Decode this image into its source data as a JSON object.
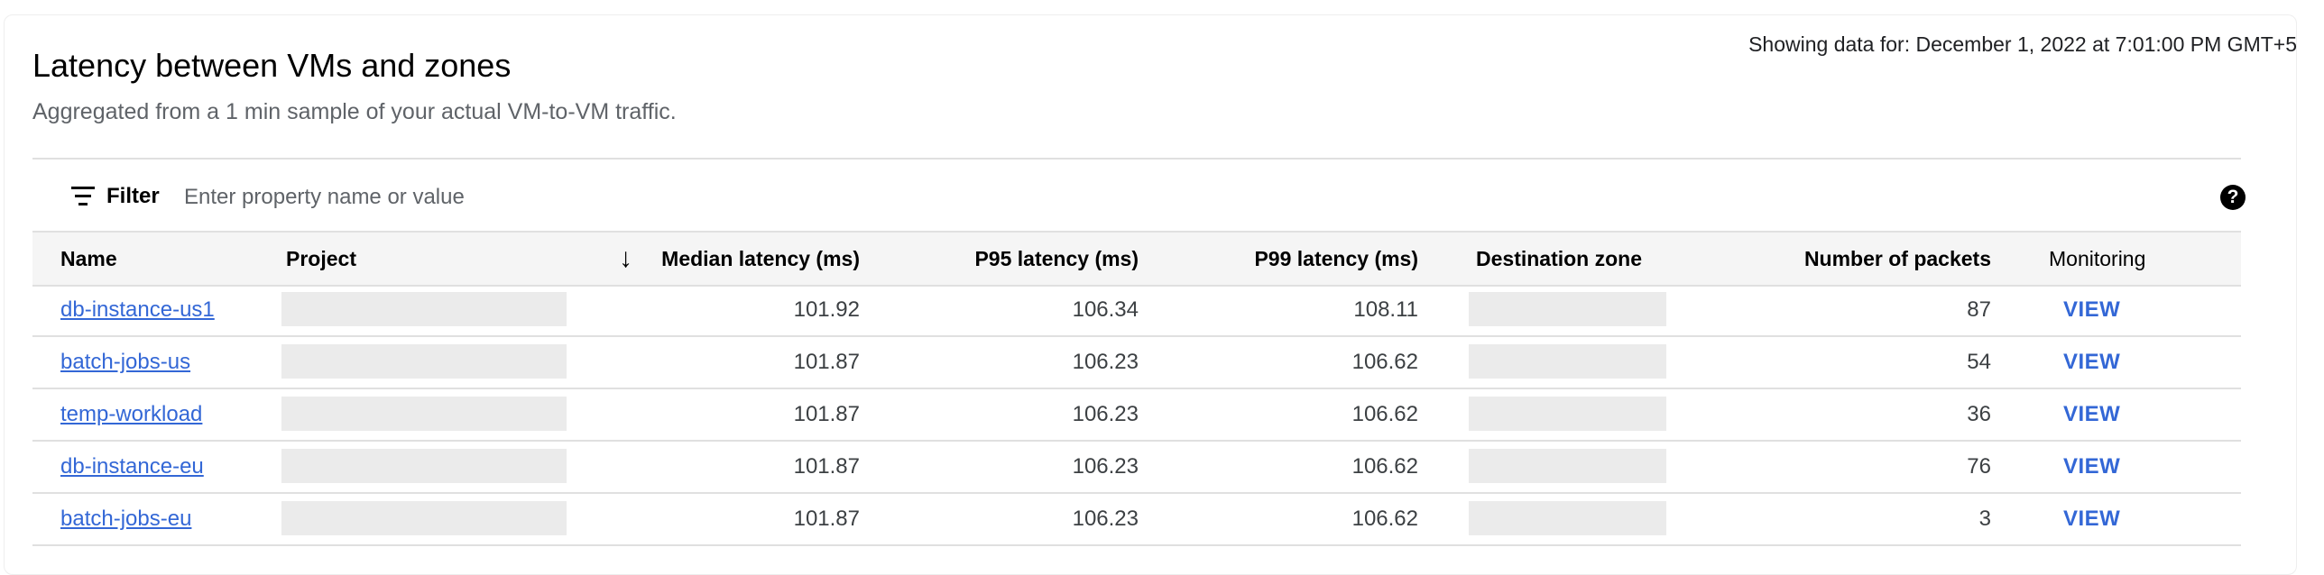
{
  "header": {
    "title": "Latency between VMs and zones",
    "subtitle": "Aggregated from a 1 min sample of your actual VM-to-VM traffic.",
    "timestamp": "Showing data for: December 1, 2022 at 7:01:00 PM GMT+5"
  },
  "filter": {
    "label": "Filter",
    "placeholder": "Enter property name or value",
    "icon": "filter-icon",
    "help_icon": "help-icon"
  },
  "table": {
    "columns": {
      "name": "Name",
      "project": "Project",
      "median": "Median latency (ms)",
      "p95": "P95 latency (ms)",
      "p99": "P99 latency (ms)",
      "destination": "Destination zone",
      "packets": "Number of packets",
      "monitoring": "Monitoring"
    },
    "sort": {
      "column": "median",
      "direction": "descending"
    },
    "rows": [
      {
        "name": "db-instance-us1",
        "median": "101.92",
        "p95": "106.34",
        "p99": "108.11",
        "packets": "87",
        "action": "VIEW"
      },
      {
        "name": "batch-jobs-us",
        "median": "101.87",
        "p95": "106.23",
        "p99": "106.62",
        "packets": "54",
        "action": "VIEW"
      },
      {
        "name": "temp-workload",
        "median": "101.87",
        "p95": "106.23",
        "p99": "106.62",
        "packets": "36",
        "action": "VIEW"
      },
      {
        "name": "db-instance-eu",
        "median": "101.87",
        "p95": "106.23",
        "p99": "106.62",
        "packets": "76",
        "action": "VIEW"
      },
      {
        "name": "batch-jobs-eu",
        "median": "101.87",
        "p95": "106.23",
        "p99": "106.62",
        "packets": "3",
        "action": "VIEW"
      }
    ]
  },
  "colors": {
    "link": "#3367d6",
    "header_bg": "#f5f5f5",
    "placeholder_block": "#ebebeb"
  }
}
